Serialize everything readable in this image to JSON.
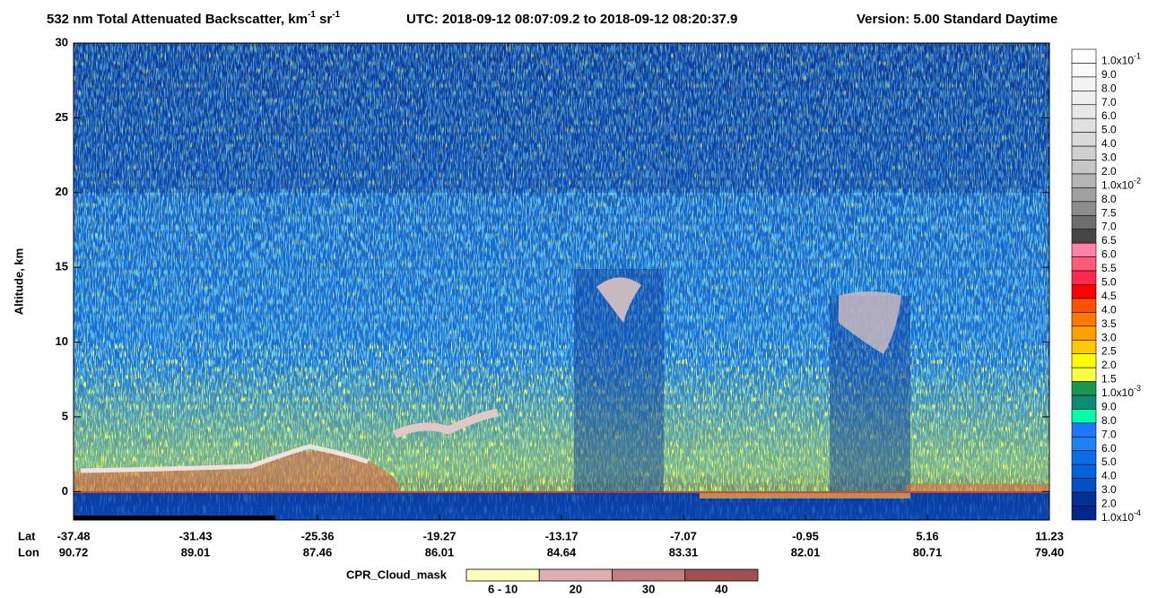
{
  "chart_data": {
    "type": "curtain",
    "title": [
      "532 nm Total Attenuated Backscatter, km",
      "-1",
      " sr",
      "-1"
    ],
    "utc": "UTC:  2018-09-12 08:07:09.2  to  2018-09-12 08:20:37.9",
    "version": "Version: 5.00  Standard  Daytime",
    "ylabel": "Altitude, km",
    "ylim": [
      -1.9,
      30
    ],
    "yticks": [
      0,
      5,
      10,
      15,
      20,
      25,
      30
    ],
    "lat_label": "Lat",
    "lon_label": "Lon",
    "lat_ticks": [
      -37.48,
      -31.43,
      -25.36,
      -19.27,
      -13.17,
      -7.07,
      -0.95,
      5.16,
      11.23
    ],
    "lon_ticks": [
      90.72,
      89.01,
      87.46,
      86.01,
      84.64,
      83.31,
      82.01,
      80.71,
      {
        "value": 79.4,
        "label": "79.40"
      }
    ],
    "colorbar": [
      {
        "value": 0.1,
        "label": "1.0x10",
        "sup": "-1",
        "color": "#ffffff"
      },
      {
        "value": 0.09,
        "label": "9.0",
        "color": "#fafafa"
      },
      {
        "value": 0.08,
        "label": "8.0",
        "color": "#f4f4f4"
      },
      {
        "value": 0.07,
        "label": "7.0",
        "color": "#eeeeee"
      },
      {
        "value": 0.06,
        "label": "6.0",
        "color": "#e8e8e8"
      },
      {
        "value": 0.05,
        "label": "5.0",
        "color": "#e1e1e1"
      },
      {
        "value": 0.04,
        "label": "4.0",
        "color": "#d9d9d9"
      },
      {
        "value": 0.03,
        "label": "3.0",
        "color": "#d0d0d0"
      },
      {
        "value": 0.02,
        "label": "2.0",
        "color": "#c6c6c6"
      },
      {
        "value": 0.01,
        "label": "1.0x10",
        "sup": "-2",
        "color": "#b4b4b4"
      },
      {
        "value": 0.008,
        "label": "8.0",
        "color": "#a0a0a0"
      },
      {
        "value": 0.0075,
        "label": "7.5",
        "color": "#8c8c8c"
      },
      {
        "value": 0.007,
        "label": "7.0",
        "color": "#6e6e6e"
      },
      {
        "value": 0.0065,
        "label": "6.5",
        "color": "#464646"
      },
      {
        "value": 0.006,
        "label": "6.0",
        "color": "#ff82a8"
      },
      {
        "value": 0.0055,
        "label": "5.5",
        "color": "#ff5a78"
      },
      {
        "value": 0.005,
        "label": "5.0",
        "color": "#ff2850"
      },
      {
        "value": 0.0045,
        "label": "4.5",
        "color": "#ff0000"
      },
      {
        "value": 0.004,
        "label": "4.0",
        "color": "#ff5000"
      },
      {
        "value": 0.0035,
        "label": "3.5",
        "color": "#ff7800"
      },
      {
        "value": 0.003,
        "label": "3.0",
        "color": "#ffa000"
      },
      {
        "value": 0.0025,
        "label": "2.5",
        "color": "#ffc800"
      },
      {
        "value": 0.002,
        "label": "2.0",
        "color": "#ffff00"
      },
      {
        "value": 0.0015,
        "label": "1.5",
        "color": "#ffff40"
      },
      {
        "value": 0.001,
        "label": "1.0x10",
        "sup": "-3",
        "color": "#1a9850"
      },
      {
        "value": 0.0009,
        "label": "9.0",
        "color": "#0f8a78"
      },
      {
        "value": 0.0008,
        "label": "8.0",
        "color": "#00ffaa"
      },
      {
        "value": 0.0007,
        "label": "7.0",
        "color": "#1e78ff"
      },
      {
        "value": 0.0006,
        "label": "6.0",
        "color": "#1e82f0"
      },
      {
        "value": 0.0005,
        "label": "5.0",
        "color": "#0a6eeb"
      },
      {
        "value": 0.0004,
        "label": "4.0",
        "color": "#0064dc"
      },
      {
        "value": 0.0003,
        "label": "3.0",
        "color": "#0050c8"
      },
      {
        "value": 0.0002,
        "label": "2.0",
        "color": "#003296"
      },
      {
        "value": 0.0001,
        "label": "1.0x10",
        "sup": "-4",
        "color": "#00288c"
      }
    ],
    "cloud_mask_title": "CPR_Cloud_mask",
    "cloud_mask": [
      {
        "label": "6 - 10",
        "color": "#ffffc0"
      },
      {
        "label": "20",
        "color": "#ddb0b0"
      },
      {
        "label": "30",
        "color": "#c08080"
      },
      {
        "label": "40",
        "color": "#a05050"
      }
    ]
  }
}
